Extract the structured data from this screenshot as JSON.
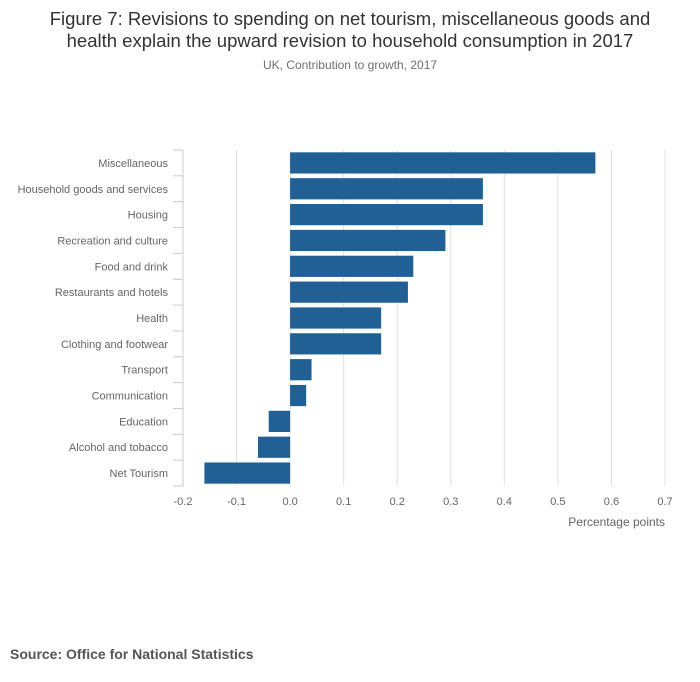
{
  "header": {
    "title_line1": "Figure 7: Revisions to spending on net tourism, miscellaneous goods and",
    "title_line2": "health explain the upward revision to household consumption in 2017",
    "subtitle": "UK, Contribution to growth, 2017"
  },
  "footer": {
    "source": "Source: Office for National Statistics"
  },
  "colors": {
    "bar": "#206095",
    "grid": "#e0e0e0",
    "axis_text": "#666666"
  },
  "chart_data": {
    "type": "bar",
    "orientation": "horizontal",
    "title": "Figure 7: Revisions to spending on net tourism, miscellaneous goods and health explain the upward revision to household consumption in 2017",
    "subtitle": "UK, Contribution to growth, 2017",
    "categories": [
      "Miscellaneous",
      "Household goods and services",
      "Housing",
      "Recreation and culture",
      "Food and drink",
      "Restaurants and hotels",
      "Health",
      "Clothing and footwear",
      "Transport",
      "Communication",
      "Education",
      "Alcohol and tobacco",
      "Net Tourism"
    ],
    "values": [
      0.57,
      0.36,
      0.36,
      0.29,
      0.23,
      0.22,
      0.17,
      0.17,
      0.04,
      0.03,
      -0.04,
      -0.06,
      -0.16
    ],
    "xlabel": "Percentage points",
    "ylabel": "",
    "xlim": [
      -0.2,
      0.7
    ],
    "xticks": [
      "-0.2",
      "-0.1",
      "0.0",
      "0.1",
      "0.2",
      "0.3",
      "0.4",
      "0.5",
      "0.6",
      "0.7"
    ],
    "grid": true
  }
}
